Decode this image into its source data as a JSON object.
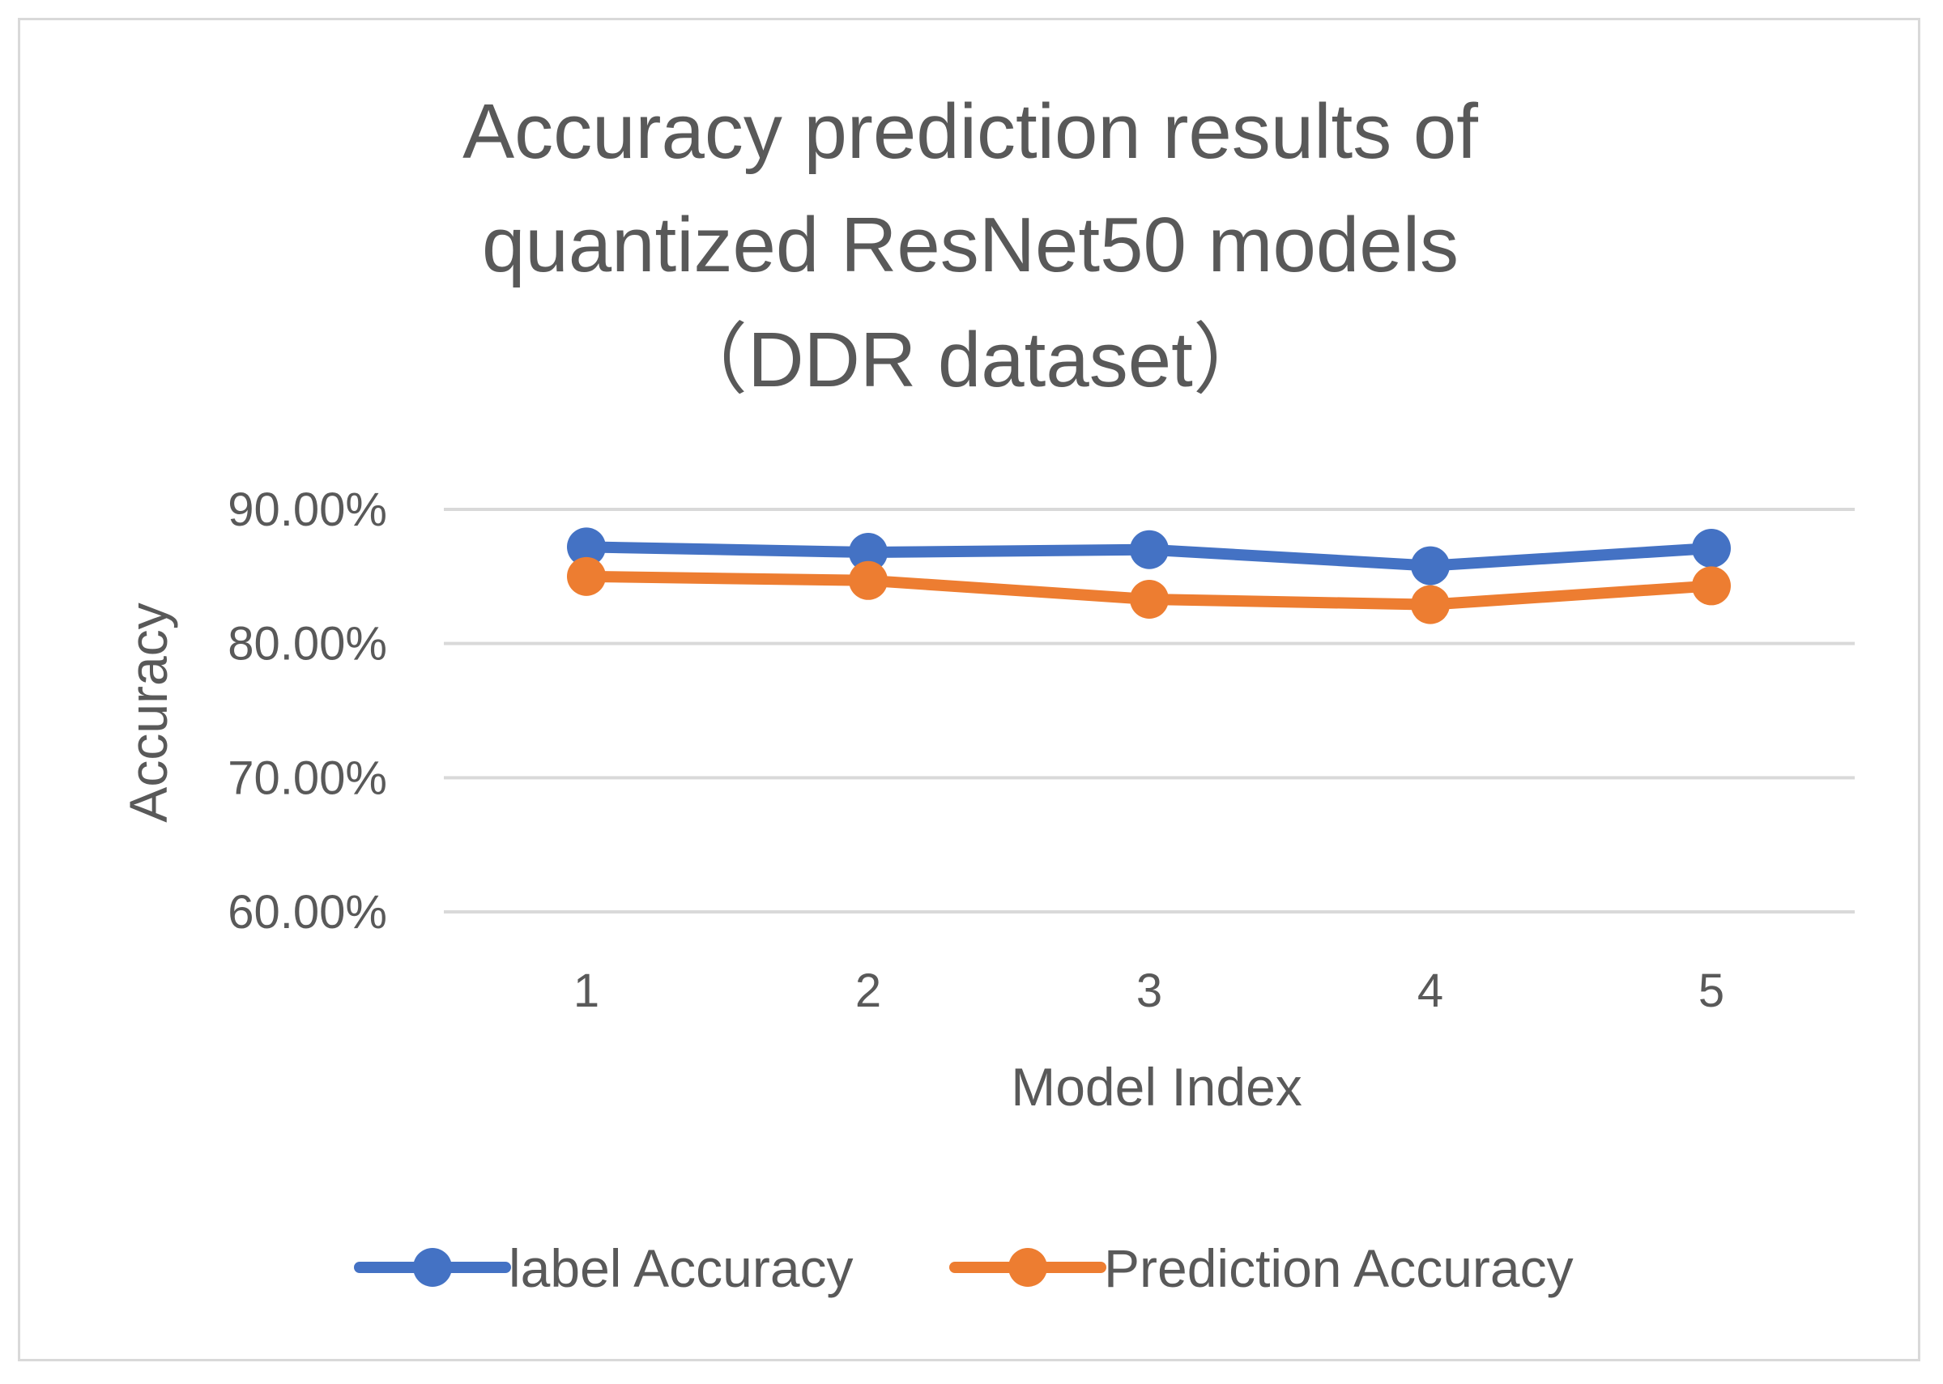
{
  "chart_data": {
    "type": "line",
    "title_lines": [
      "Accuracy prediction results of",
      "quantized ResNet50 models",
      "（DDR dataset）"
    ],
    "xlabel": "Model Index",
    "ylabel": "Accuracy",
    "categories": [
      "1",
      "2",
      "3",
      "4",
      "5"
    ],
    "ylim": [
      0.6,
      0.9
    ],
    "yticks": [
      0.6,
      0.7,
      0.8,
      0.9
    ],
    "ytick_labels": [
      "60.00%",
      "70.00%",
      "80.00%",
      "90.00%"
    ],
    "grid": true,
    "legend_position": "bottom",
    "series": [
      {
        "name": "label Accuracy",
        "color": "#4472C4",
        "values": [
          0.872,
          0.868,
          0.87,
          0.858,
          0.871
        ]
      },
      {
        "name": "Prediction Accuracy",
        "color": "#ED7D31",
        "values": [
          0.85,
          0.847,
          0.833,
          0.829,
          0.843
        ]
      }
    ]
  }
}
